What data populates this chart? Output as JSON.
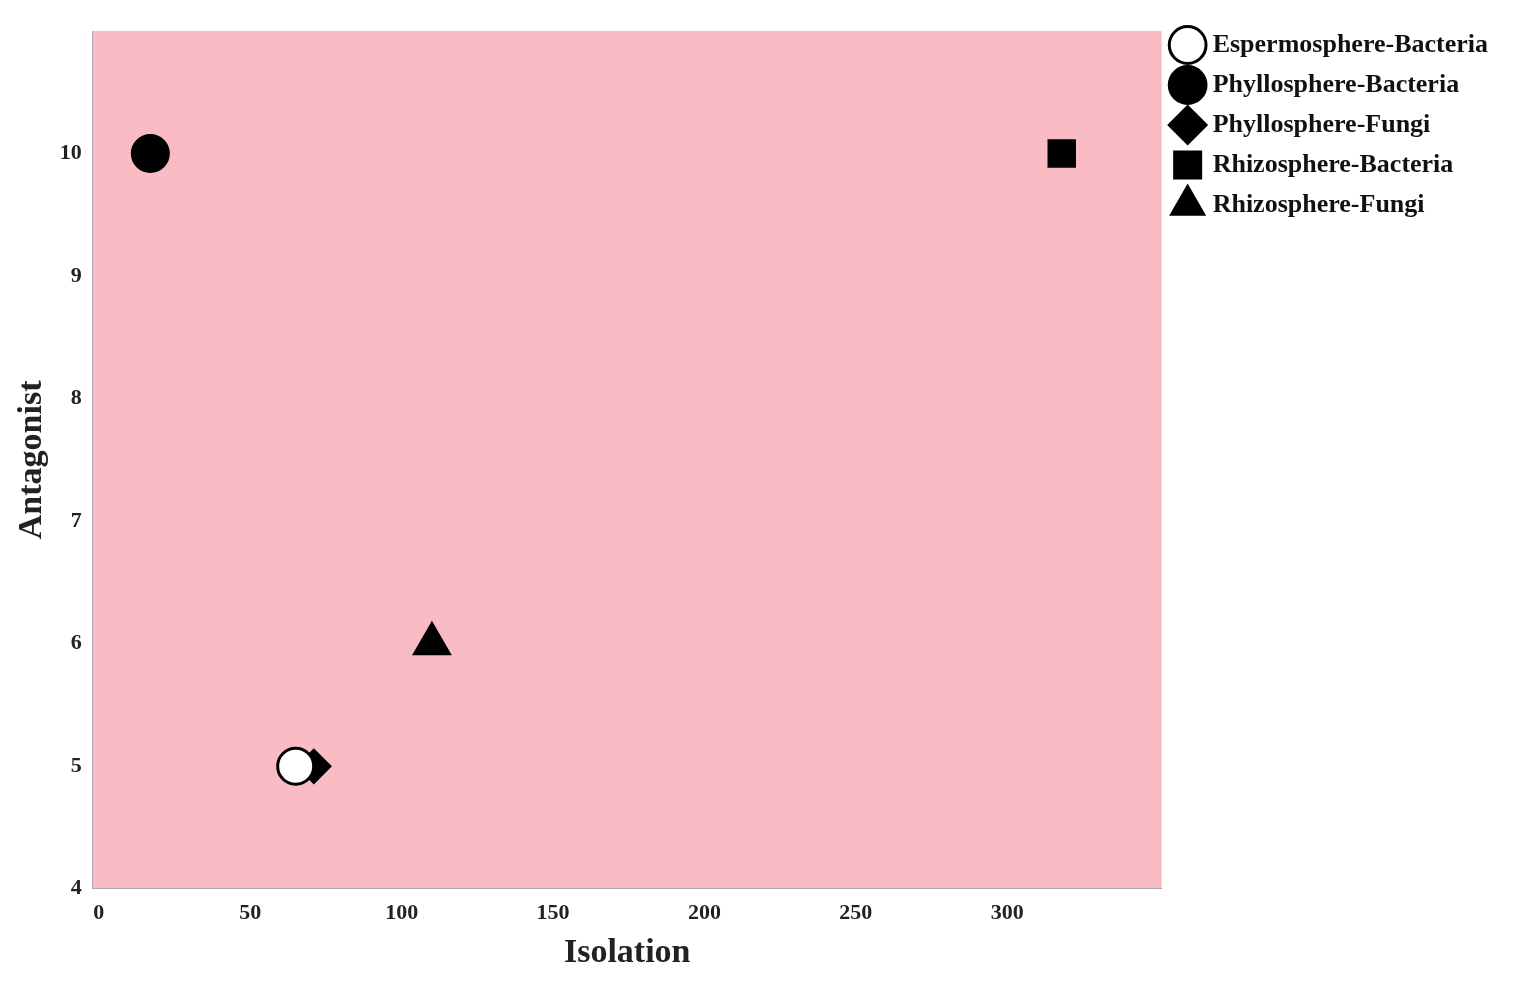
{
  "chart_data": {
    "type": "scatter",
    "xlabel": "Isolation",
    "ylabel": "Antagonist",
    "xlim": [
      -2,
      351
    ],
    "ylim": [
      4,
      11
    ],
    "xticks": [
      0,
      50,
      100,
      150,
      200,
      250,
      300
    ],
    "yticks": [
      4,
      5,
      6,
      7,
      8,
      9,
      10
    ],
    "grid": false,
    "legend": "top right",
    "series": [
      {
        "name": "Espermosphere-Bacteria",
        "color": "#ffffff",
        "marker": "circle",
        "x": [
          65
        ],
        "values": [
          5
        ]
      },
      {
        "name": "Phyllosphere-Bacteria",
        "color": "#000000",
        "marker": "circle",
        "x": [
          17
        ],
        "values": [
          10
        ]
      },
      {
        "name": "Phyllosphere-Fungi",
        "color": "#000000",
        "marker": "diamond",
        "x": [
          71
        ],
        "values": [
          5
        ]
      },
      {
        "name": "Rhizosphere-Bacteria",
        "color": "#000000",
        "marker": "square",
        "x": [
          318
        ],
        "values": [
          10
        ]
      },
      {
        "name": "Rhizosphere-Fungi",
        "color": "#000000",
        "marker": "triangle",
        "x": [
          110
        ],
        "values": [
          6
        ]
      }
    ]
  }
}
